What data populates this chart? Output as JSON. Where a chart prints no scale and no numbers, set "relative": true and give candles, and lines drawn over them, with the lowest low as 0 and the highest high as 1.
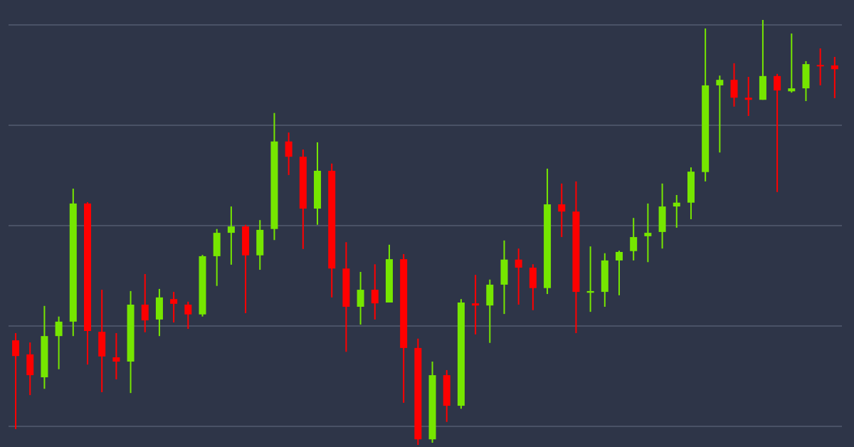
{
  "chart_data": {
    "type": "candlestick",
    "relative": true,
    "grid": "y",
    "categories": [
      null,
      null,
      null,
      null,
      null,
      null,
      null,
      null,
      null,
      null,
      null,
      null,
      null,
      null,
      null,
      null,
      null,
      null,
      null,
      null,
      null,
      null,
      null,
      null,
      null,
      null,
      null,
      null,
      null,
      null,
      null,
      null,
      null,
      null,
      null,
      null,
      null,
      null,
      null,
      null,
      null,
      null,
      null,
      null,
      null,
      null,
      null,
      null,
      null,
      null,
      null,
      null,
      null,
      null,
      null,
      null,
      null,
      null
    ],
    "ohlc": [
      [
        0.246,
        0.263,
        0.037,
        0.209
      ],
      [
        0.213,
        0.241,
        0.117,
        0.164
      ],
      [
        0.159,
        0.327,
        0.132,
        0.256
      ],
      [
        0.256,
        0.302,
        0.178,
        0.29
      ],
      [
        0.29,
        0.603,
        0.256,
        0.568
      ],
      [
        0.568,
        0.571,
        0.189,
        0.268
      ],
      [
        0.266,
        0.365,
        0.124,
        0.208
      ],
      [
        0.206,
        0.263,
        0.154,
        0.196
      ],
      [
        0.196,
        0.362,
        0.122,
        0.33
      ],
      [
        0.33,
        0.402,
        0.265,
        0.293
      ],
      [
        0.295,
        0.367,
        0.256,
        0.347
      ],
      [
        0.343,
        0.36,
        0.288,
        0.332
      ],
      [
        0.33,
        0.337,
        0.273,
        0.307
      ],
      [
        0.307,
        0.447,
        0.302,
        0.444
      ],
      [
        0.444,
        0.508,
        0.374,
        0.499
      ],
      [
        0.499,
        0.561,
        0.424,
        0.514
      ],
      [
        0.514,
        0.518,
        0.31,
        0.446
      ],
      [
        0.446,
        0.529,
        0.412,
        0.506
      ],
      [
        0.508,
        0.781,
        0.482,
        0.714
      ],
      [
        0.714,
        0.735,
        0.635,
        0.678
      ],
      [
        0.678,
        0.695,
        0.461,
        0.556
      ],
      [
        0.556,
        0.712,
        0.518,
        0.645
      ],
      [
        0.645,
        0.662,
        0.347,
        0.415
      ],
      [
        0.415,
        0.477,
        0.219,
        0.325
      ],
      [
        0.325,
        0.407,
        0.283,
        0.365
      ],
      [
        0.365,
        0.425,
        0.295,
        0.333
      ],
      [
        0.335,
        0.471,
        0.335,
        0.437
      ],
      [
        0.437,
        0.449,
        0.099,
        0.228
      ],
      [
        0.228,
        0.25,
        0,
        0.013
      ],
      [
        0.013,
        0.196,
        0.005,
        0.164
      ],
      [
        0.164,
        0.176,
        0.054,
        0.092
      ],
      [
        0.092,
        0.343,
        0.085,
        0.335
      ],
      [
        0.333,
        0.4,
        0.26,
        0.328
      ],
      [
        0.328,
        0.389,
        0.24,
        0.377
      ],
      [
        0.377,
        0.481,
        0.308,
        0.436
      ],
      [
        0.436,
        0.462,
        0.33,
        0.417
      ],
      [
        0.417,
        0.425,
        0.317,
        0.369
      ],
      [
        0.369,
        0.65,
        0.355,
        0.566
      ],
      [
        0.566,
        0.615,
        0.489,
        0.549
      ],
      [
        0.549,
        0.62,
        0.263,
        0.36
      ],
      [
        0.358,
        0.467,
        0.313,
        0.362
      ],
      [
        0.36,
        0.451,
        0.325,
        0.434
      ],
      [
        0.434,
        0.457,
        0.352,
        0.454
      ],
      [
        0.456,
        0.534,
        0.434,
        0.489
      ],
      [
        0.491,
        0.568,
        0.43,
        0.499
      ],
      [
        0.501,
        0.615,
        0.462,
        0.561
      ],
      [
        0.561,
        0.588,
        0.511,
        0.57
      ],
      [
        0.57,
        0.653,
        0.531,
        0.643
      ],
      [
        0.642,
        0.98,
        0.62,
        0.846
      ],
      [
        0.846,
        0.869,
        0.688,
        0.859
      ],
      [
        0.859,
        0.898,
        0.796,
        0.817
      ],
      [
        0.817,
        0.866,
        0.774,
        0.812
      ],
      [
        0.812,
        1,
        0.812,
        0.868
      ],
      [
        0.868,
        0.873,
        0.595,
        0.834
      ],
      [
        0.832,
        0.968,
        0.829,
        0.839
      ],
      [
        0.839,
        0.903,
        0.809,
        0.896
      ],
      [
        0.894,
        0.933,
        0.846,
        0.891
      ],
      [
        0.893,
        0.913,
        0.816,
        0.884
      ]
    ],
    "colors": [
      "#ff0000",
      "#ff0000",
      "#76e600",
      "#76e600",
      "#76e600",
      "#ff0000",
      "#ff0000",
      "#ff0000",
      "#76e600",
      "#ff0000",
      "#76e600",
      "#ff0000",
      "#ff0000",
      "#76e600",
      "#76e600",
      "#76e600",
      "#ff0000",
      "#76e600",
      "#76e600",
      "#ff0000",
      "#ff0000",
      "#76e600",
      "#ff0000",
      "#ff0000",
      "#76e600",
      "#ff0000",
      "#76e600",
      "#ff0000",
      "#ff0000",
      "#76e600",
      "#ff0000",
      "#76e600",
      "#ff0000",
      "#76e600",
      "#76e600",
      "#ff0000",
      "#ff0000",
      "#76e600",
      "#ff0000",
      "#ff0000",
      "#76e600",
      "#76e600",
      "#76e600",
      "#76e600",
      "#76e600",
      "#76e600",
      "#76e600",
      "#76e600",
      "#76e600",
      "#76e600",
      "#ff0000",
      "#ff0000",
      "#76e600",
      "#ff0000",
      "#76e600",
      "#76e600",
      "#ff0000",
      "#ff0000"
    ]
  }
}
